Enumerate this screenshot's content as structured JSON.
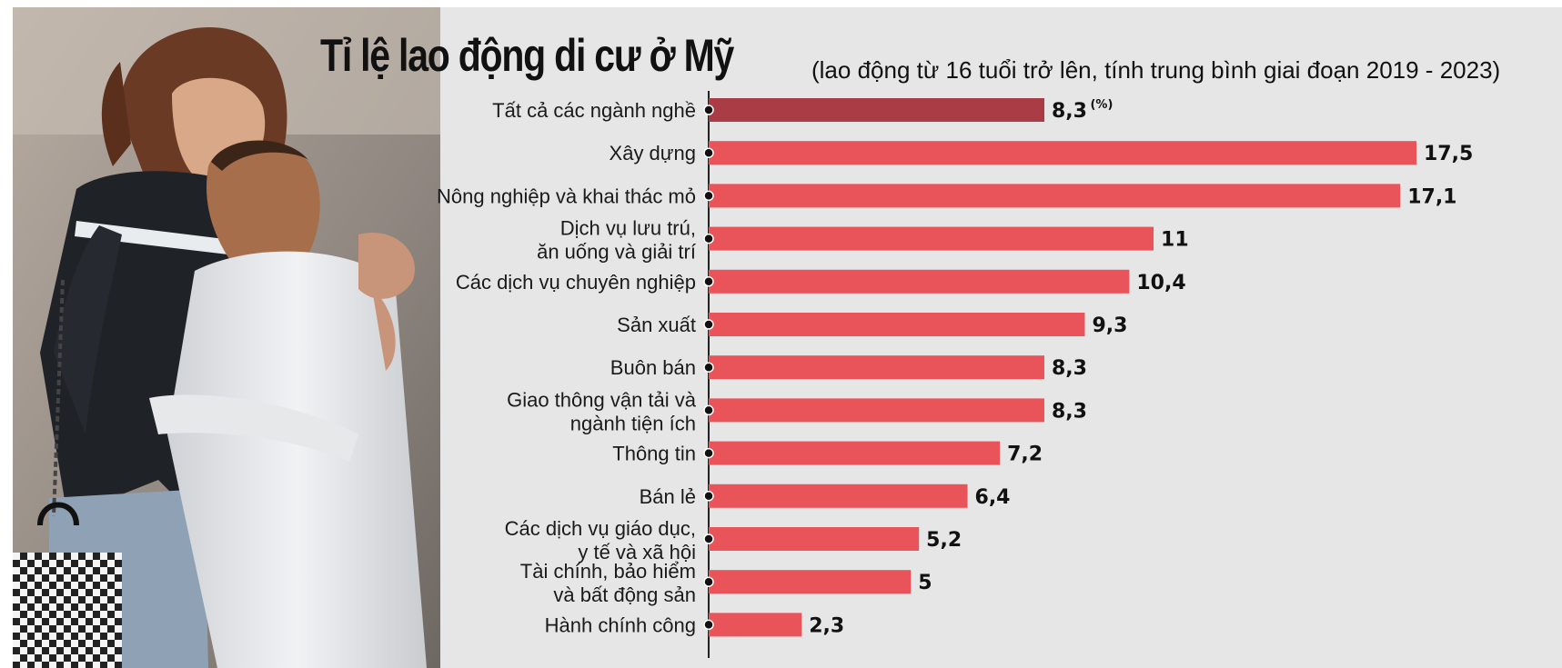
{
  "chart_data": {
    "type": "bar",
    "orientation": "horizontal",
    "title": "Tỉ lệ lao động di cư ở Mỹ",
    "subtitle": "(lao động từ 16 tuổi trở lên, tính trung bình giai đoạn 2019 - 2023)",
    "unit_label": "(%)",
    "xlim": [
      0,
      17.5
    ],
    "categories": [
      [
        "Tất cả các ngành nghề"
      ],
      [
        "Xây dựng"
      ],
      [
        "Nông nghiệp và khai thác mỏ"
      ],
      [
        "Dịch vụ lưu trú,",
        "ăn uống và giải trí"
      ],
      [
        "Các dịch vụ chuyên nghiệp"
      ],
      [
        "Sản xuất"
      ],
      [
        "Buôn bán"
      ],
      [
        "Giao thông vận tải và",
        "ngành tiện ích"
      ],
      [
        "Thông tin"
      ],
      [
        "Bán lẻ"
      ],
      [
        "Các dịch vụ giáo dục,",
        "y tế và xã hội"
      ],
      [
        "Tài chính, bảo hiểm",
        "và bất động sản"
      ],
      [
        "Hành chính công"
      ]
    ],
    "values": [
      8.3,
      17.5,
      17.1,
      11,
      10.4,
      9.3,
      8.3,
      8.3,
      7.2,
      6.4,
      5.2,
      5,
      2.3
    ],
    "value_labels": [
      "8,3",
      "17,5",
      "17,1",
      "11",
      "10,4",
      "9,3",
      "8,3",
      "8,3",
      "7,2",
      "6,4",
      "5,2",
      "5",
      "2,3"
    ],
    "colors": {
      "highlight": "#a93c44",
      "bar": "#e9545a",
      "axis": "#222222"
    },
    "highlight_index": 0,
    "grid": false,
    "legend": "none"
  }
}
